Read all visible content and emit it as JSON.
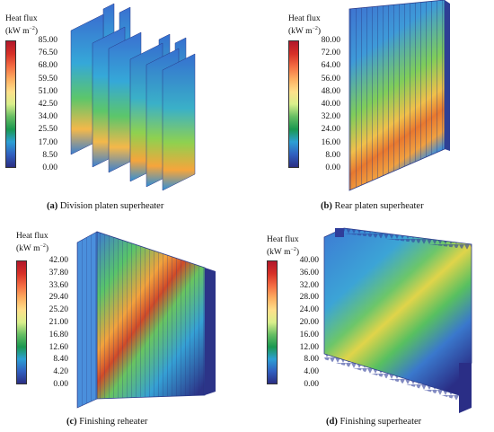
{
  "panels": [
    {
      "id": "a",
      "legend_title_line1": "Heat flux",
      "legend_title_line2": "(kW m",
      "legend_title_exp": "−2",
      "legend_title_close": ")",
      "ticks": [
        "85.00",
        "76.50",
        "68.00",
        "59.50",
        "51.00",
        "42.50",
        "34.00",
        "25.50",
        "17.00",
        "8.50",
        "0.00"
      ],
      "caption_letter": "(a)",
      "caption_text": " Division platen superheater"
    },
    {
      "id": "b",
      "legend_title_line1": "Heat flux",
      "legend_title_line2": "(kW m",
      "legend_title_exp": "−2",
      "legend_title_close": ")",
      "ticks": [
        "80.00",
        "72.00",
        "64.00",
        "56.00",
        "48.00",
        "40.00",
        "32.00",
        "24.00",
        "16.00",
        "8.00",
        "0.00"
      ],
      "caption_letter": "(b)",
      "caption_text": " Rear platen superheater"
    },
    {
      "id": "c",
      "legend_title_line1": "Heat flux",
      "legend_title_line2": "(kW m",
      "legend_title_exp": "−2",
      "legend_title_close": ")",
      "ticks": [
        "42.00",
        "37.80",
        "33.60",
        "29.40",
        "25.20",
        "21.00",
        "16.80",
        "12.60",
        "8.40",
        "4.20",
        "0.00"
      ],
      "caption_letter": "(c)",
      "caption_text": " Finishing reheater"
    },
    {
      "id": "d",
      "legend_title_line1": "Heat flux",
      "legend_title_line2": "(kW m",
      "legend_title_exp": "−2",
      "legend_title_close": ")",
      "ticks": [
        "40.00",
        "36.00",
        "32.00",
        "28.00",
        "24.00",
        "20.00",
        "16.00",
        "12.00",
        "8.00",
        "4.00",
        "0.00"
      ],
      "caption_letter": "(d)",
      "caption_text": " Finishing superheater"
    }
  ],
  "colormap": [
    "#b2182b",
    "#d73027",
    "#f46d43",
    "#fdae61",
    "#fee08b",
    "#d9ef8b",
    "#66bd63",
    "#1a9850",
    "#2c9fd4",
    "#3060c0",
    "#2b2e83"
  ]
}
